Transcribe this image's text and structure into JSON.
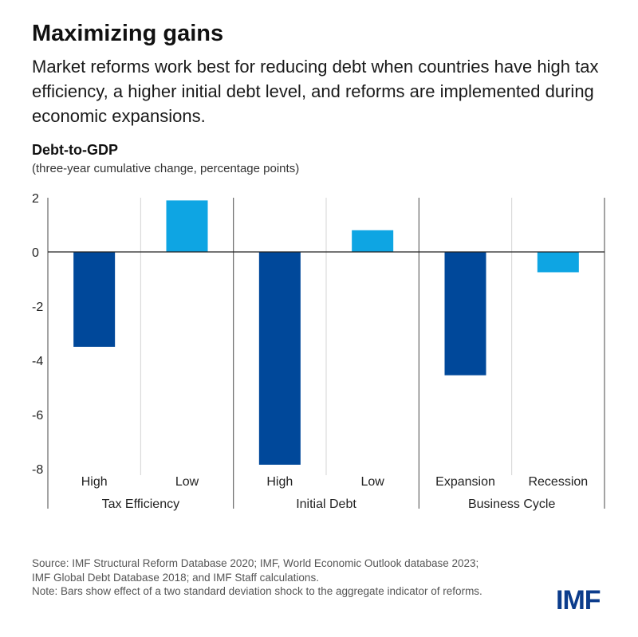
{
  "header": {
    "title": "Maximizing gains",
    "subtitle": "Market reforms work best for reducing debt when countries have high tax efficiency, a higher initial debt level, and reforms are implemented during economic expansions."
  },
  "chart_data": {
    "type": "bar",
    "title": "Debt-to-GDP",
    "subtitle": "(three-year cumulative change, percentage points)",
    "ylabel": "Debt-to-GDP",
    "ylim": [
      -8,
      2
    ],
    "yticks": [
      2,
      0,
      -2,
      -4,
      -6,
      -8
    ],
    "grid": false,
    "categories": [
      "High",
      "Low",
      "High",
      "Low",
      "Expansion",
      "Recession"
    ],
    "values": [
      -3.5,
      1.9,
      -7.85,
      0.8,
      -4.55,
      -0.75
    ],
    "bar_colors": [
      "#00489a",
      "#0ea5e3",
      "#00489a",
      "#0ea5e3",
      "#00489a",
      "#0ea5e3"
    ],
    "groups": [
      {
        "label": "Tax Efficiency",
        "categories": [
          "High",
          "Low"
        ]
      },
      {
        "label": "Initial Debt",
        "categories": [
          "High",
          "Low"
        ]
      },
      {
        "label": "Business Cycle",
        "categories": [
          "Expansion",
          "Recession"
        ]
      }
    ]
  },
  "footer": {
    "source": "Source: IMF Structural Reform Database 2020; IMF, World Economic Outlook database 2023; IMF Global Debt Database 2018; and IMF Staff calculations.",
    "note": "Note: Bars show effect of a two standard deviation shock to the aggregate indicator of reforms."
  },
  "logo": {
    "text": "IMF",
    "color": "#0b3c8c"
  }
}
